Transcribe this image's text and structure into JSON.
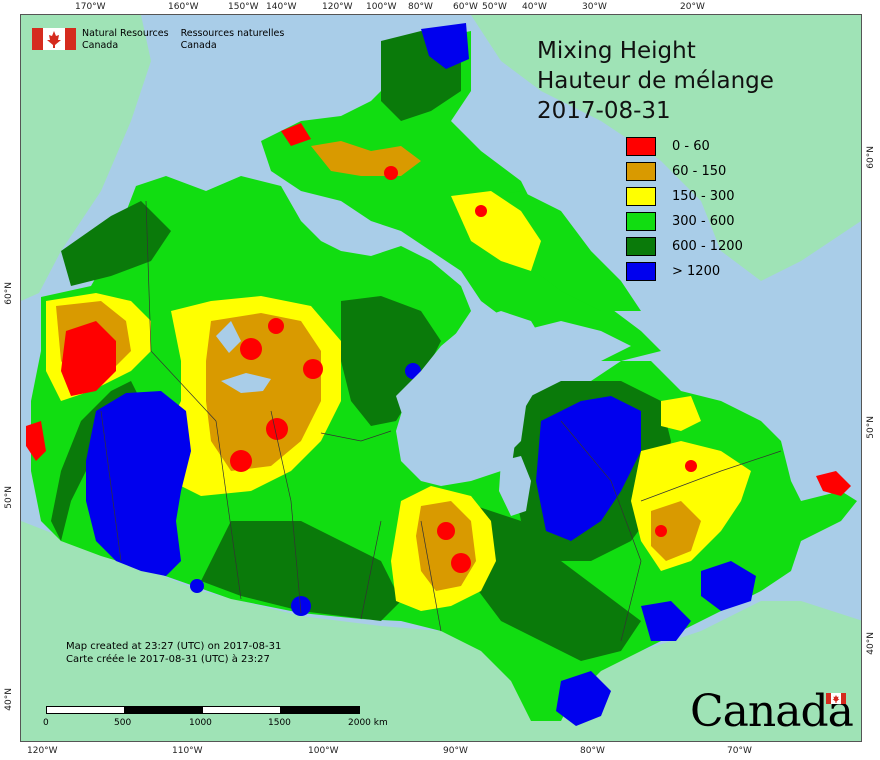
{
  "header": {
    "org_en": [
      "Natural Resources",
      "Canada"
    ],
    "org_fr": [
      "Ressources naturelles",
      "Canada"
    ],
    "title_en": "Mixing Height",
    "title_fr": "Hauteur de mélange",
    "date": "2017-08-31"
  },
  "legend": [
    {
      "label": "0 - 60",
      "color": "#ff0000"
    },
    {
      "label": "60 - 150",
      "color": "#d99a00"
    },
    {
      "label": "150 - 300",
      "color": "#ffff00"
    },
    {
      "label": "300 - 600",
      "color": "#11dd11"
    },
    {
      "label": "600 - 1200",
      "color": "#0a7a0a"
    },
    {
      "label": "> 1200",
      "color": "#0000ee"
    }
  ],
  "colors": {
    "ocean": "#a9cde8",
    "land_other": "#9fe3b6",
    "h0": "#ff0000",
    "h1": "#d99a00",
    "h2": "#ffff00",
    "h3": "#11dd11",
    "h4": "#0a7a0a",
    "h5": "#0000ee"
  },
  "footer": {
    "created_en": "Map created at 23:27 (UTC) on 2017-08-31",
    "created_fr": "Carte créée le 2017-08-31 (UTC) à 23:27",
    "scale_labels": [
      "0",
      "500",
      "1000",
      "1500",
      "2000 km"
    ],
    "wordmark": "Canada"
  },
  "graticule": {
    "top": [
      "170°W",
      "160°W",
      "150°W",
      "140°W",
      "120°W",
      "100°W",
      "80°W",
      "60°W",
      "50°W",
      "40°W",
      "30°W",
      "20°W"
    ],
    "bottom": [
      "120°W",
      "110°W",
      "100°W",
      "90°W",
      "80°W",
      "70°W"
    ],
    "left": [
      "60°N",
      "50°N",
      "40°N"
    ],
    "right": [
      "60°N",
      "50°N",
      "40°N"
    ]
  }
}
